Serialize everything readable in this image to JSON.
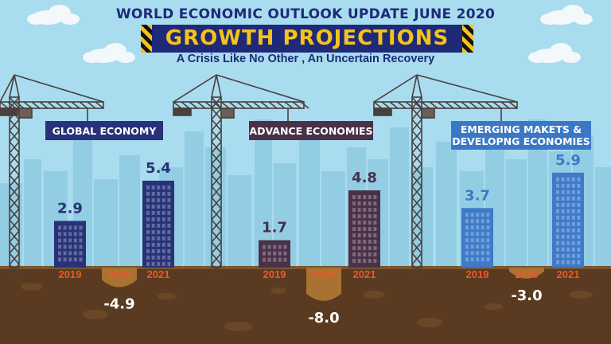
{
  "header": {
    "top_title": "WORLD ECONOMIC OUTLOOK UPDATE JUNE 2020",
    "banner_title": "GROWTH PROJECTIONS",
    "subtitle": "A Crisis Like No Other , An Uncertain Recovery"
  },
  "colors": {
    "sky": "#a9dcef",
    "ground": "#5a3b21",
    "pit": "#a87332",
    "year_label": "#ea5a2b",
    "crane": "#4a3f3c"
  },
  "chart_data": [
    {
      "type": "bar",
      "title": "GLOBAL ECONOMY",
      "categories": [
        "2019",
        "2020",
        "2021"
      ],
      "values": [
        2.9,
        -4.9,
        5.4
      ],
      "data_labels": [
        "2.9",
        "-4.9",
        "5.4"
      ],
      "color": "#283278",
      "label_color": "#283278",
      "box_color": "#283278"
    },
    {
      "type": "bar",
      "title": "ADVANCE ECONOMIES",
      "categories": [
        "2019",
        "2020",
        "2021"
      ],
      "values": [
        1.7,
        -8.0,
        4.8
      ],
      "data_labels": [
        "1.7",
        "-8.0",
        "4.8"
      ],
      "color": "#4a3049",
      "label_color": "#4a3049",
      "box_color": "#4a3049"
    },
    {
      "type": "bar",
      "title": "EMERGING MAKETS & DEVELOPNG ECONOMIES",
      "title_lines": [
        "EMERGING MAKETS &",
        "DEVELOPNG ECONOMIES"
      ],
      "categories": [
        "2019",
        "2020",
        "2021"
      ],
      "values": [
        3.7,
        -3.0,
        5.9
      ],
      "data_labels": [
        "3.7",
        "-3.0",
        "5.9"
      ],
      "color": "#3d7ac8",
      "label_color": "#3d7ac8",
      "box_color": "#3a78c6"
    }
  ]
}
